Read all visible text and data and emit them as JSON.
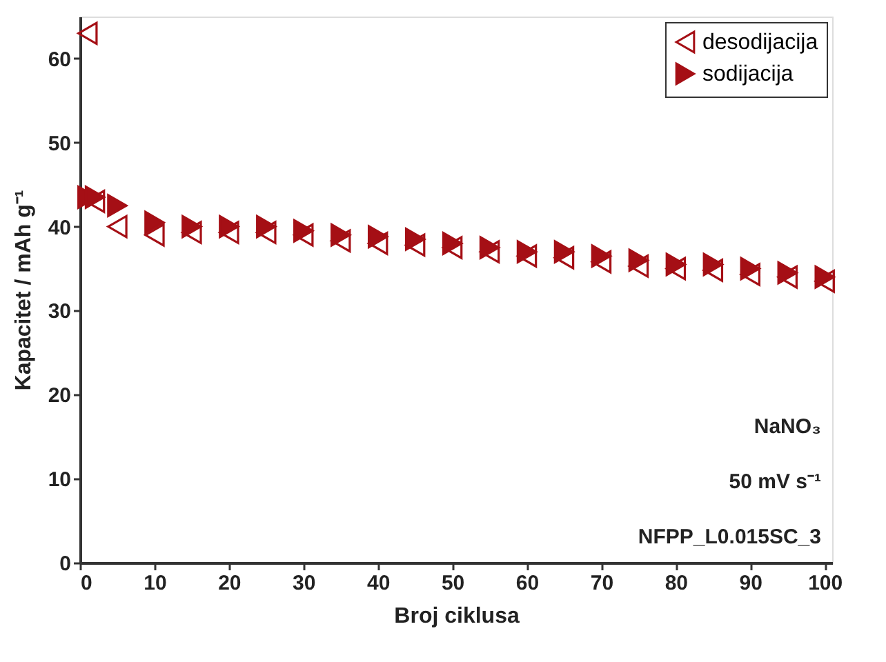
{
  "chart_data": {
    "type": "scatter",
    "xlabel": "Broj ciklusa",
    "ylabel": "Kapacitet / mAh g⁻¹",
    "x": [
      1,
      2,
      5,
      10,
      15,
      20,
      25,
      30,
      35,
      40,
      45,
      50,
      55,
      60,
      65,
      70,
      75,
      80,
      85,
      90,
      95,
      100
    ],
    "series": [
      {
        "name": "desodijacija",
        "color": "#a50f15",
        "marker": "triangle",
        "values": [
          63,
          43,
          40,
          39,
          39.3,
          39.3,
          39.3,
          39,
          38.3,
          38,
          37.8,
          37.5,
          37,
          36.5,
          36.3,
          35.8,
          35.3,
          35,
          34.8,
          34.3,
          34,
          33.5
        ]
      },
      {
        "name": "sodijacija",
        "color": "#a50f15",
        "marker": "triangle",
        "values": [
          43.5,
          43.5,
          42.5,
          40.5,
          40,
          40,
          40,
          39.5,
          39,
          38.8,
          38.5,
          38,
          37.5,
          37,
          37,
          36.5,
          36,
          35.5,
          35.5,
          35,
          34.5,
          34
        ]
      }
    ],
    "xlim": [
      0,
      101
    ],
    "xticks": [
      0,
      10,
      20,
      30,
      40,
      50,
      60,
      70,
      80,
      90,
      100
    ],
    "ylim": [
      0,
      65
    ],
    "yticks": [
      0,
      10,
      20,
      30,
      40,
      50,
      60
    ],
    "grid": false,
    "legend": "top right",
    "annotations": [
      "NaNO₃",
      "50 mV s⁻¹",
      "NFPP_L0.015SC_3"
    ]
  }
}
